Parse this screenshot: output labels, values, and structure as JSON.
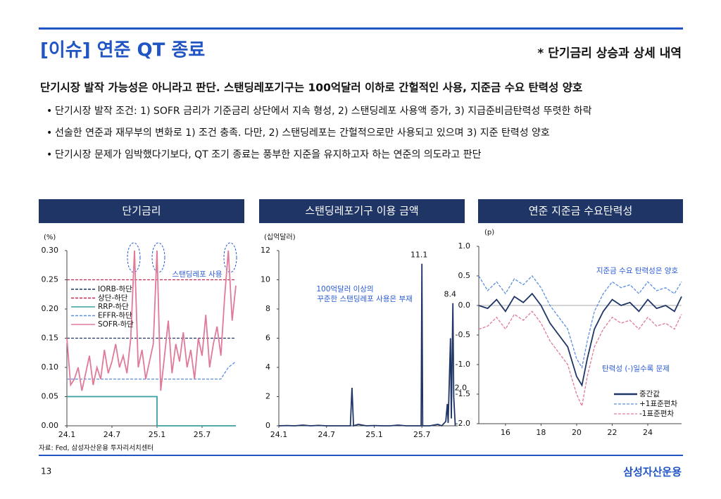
{
  "header": {
    "title": "[이슈] 연준 QT 종료",
    "subtitle": "* 단기금리 상승과 상세 내역"
  },
  "headline": "단기시장 발작 가능성은 아니라고 판단. 스탠딩레포기구는 100억달러 이하로 간헐적인 사용, 지준금 수요 탄력성 양호",
  "bullets": [
    "단기시장 발작 조건: 1) SOFR 금리가 기준금리 상단에서 지속 형성, 2) 스탠딩레포 사용액 증가, 3) 지급준비금탄력성 뚜렷한 하락",
    "선술한 연준과 재무부의 변화로 1) 조건 충족. 다만, 2) 스탠딩레포는 간헐적으로만 사용되고 있으며 3) 지준 탄력성 양호",
    "단기시장 문제가 임박했다기보다, QT 조기 종료는 풍부한 지준을 유지하고자 하는 연준의 의도라고 판단"
  ],
  "chart_data": [
    {
      "type": "line",
      "title": "단기금리",
      "ylabel": "(%)",
      "xlim": [
        0,
        22.5
      ],
      "xticks": [
        {
          "value": 0,
          "label": "24.1"
        },
        {
          "value": 6,
          "label": "24.7"
        },
        {
          "value": 12,
          "label": "25.1"
        },
        {
          "value": 18,
          "label": "25.7"
        }
      ],
      "ylim": [
        0,
        0.3
      ],
      "yticks": [
        {
          "value": 0,
          "label": "0.00"
        },
        {
          "value": 0.05,
          "label": "0.05"
        },
        {
          "value": 0.1,
          "label": "0.10"
        },
        {
          "value": 0.15,
          "label": "0.15"
        },
        {
          "value": 0.2,
          "label": "0.20"
        },
        {
          "value": 0.25,
          "label": "0.25"
        },
        {
          "value": 0.3,
          "label": "0.30"
        }
      ],
      "legend": "upper left",
      "annotations": [
        "스탠딩레포 사용"
      ],
      "series": [
        {
          "name": "IORB-하단",
          "color": "#1f3566",
          "dash": true,
          "x": [
            0,
            22.5
          ],
          "values": [
            0.15,
            0.15
          ]
        },
        {
          "name": "상단-하단",
          "color": "#c8264f",
          "dash": true,
          "x": [
            0,
            22.5
          ],
          "values": [
            0.25,
            0.25
          ]
        },
        {
          "name": "RRP-하단",
          "color": "#3aa0a0",
          "dash": false,
          "x": [
            0,
            12,
            12,
            22.5
          ],
          "values": [
            0.05,
            0.05,
            0,
            0
          ]
        },
        {
          "name": "EFFR-하단",
          "color": "#5b8fe0",
          "dash": true,
          "x": [
            0,
            20.5,
            21.5,
            22.5
          ],
          "values": [
            0.08,
            0.08,
            0.1,
            0.11
          ]
        },
        {
          "name": "SOFR-하단",
          "color": "#e07a99",
          "dash": false,
          "x": [
            0,
            0.5,
            1,
            1.5,
            2,
            2.5,
            3,
            3.5,
            4,
            4.5,
            5,
            5.5,
            6,
            6.5,
            7,
            7.5,
            8,
            8.5,
            9,
            9.5,
            10,
            10.5,
            11,
            11.5,
            12,
            12.5,
            13,
            13.5,
            14,
            14.5,
            15,
            15.5,
            16,
            16.5,
            17,
            17.5,
            18,
            18.5,
            19,
            19.5,
            20,
            20.5,
            21,
            21.5,
            22,
            22.5
          ],
          "values": [
            0.15,
            0.07,
            0.08,
            0.1,
            0.06,
            0.09,
            0.12,
            0.07,
            0.1,
            0.08,
            0.13,
            0.09,
            0.11,
            0.14,
            0.1,
            0.12,
            0.09,
            0.15,
            0.3,
            0.1,
            0.13,
            0.08,
            0.11,
            0.14,
            0.3,
            0.06,
            0.12,
            0.18,
            0.09,
            0.14,
            0.11,
            0.16,
            0.1,
            0.13,
            0.08,
            0.15,
            0.12,
            0.19,
            0.1,
            0.14,
            0.17,
            0.12,
            0.22,
            0.3,
            0.18,
            0.24
          ]
        }
      ]
    },
    {
      "type": "line",
      "title": "스탠딩레포기구 이용 금액",
      "ylabel": "(십억달러)",
      "color": "#1f3566",
      "xlim": [
        0,
        22.5
      ],
      "xticks": [
        {
          "value": 0,
          "label": "24.1"
        },
        {
          "value": 6,
          "label": "24.7"
        },
        {
          "value": 12,
          "label": "25.1"
        },
        {
          "value": 18,
          "label": "25.7"
        }
      ],
      "ylim": [
        0,
        12
      ],
      "yticks": [
        0,
        2,
        4,
        6,
        8,
        10,
        12
      ],
      "annotations": [
        "100억달러 이상의",
        "꾸준한 스탠딩레포 사용은 부재"
      ],
      "x": [
        0,
        1,
        2,
        3,
        4,
        5,
        6,
        7,
        8,
        9,
        9.2,
        9.4,
        10,
        11,
        12,
        13,
        14,
        15,
        16,
        17,
        17.9,
        18,
        18.1,
        19,
        20,
        20.5,
        21,
        21.2,
        21.3,
        21.6,
        21.7,
        21.9,
        22,
        22.2
      ],
      "values": [
        0,
        0.02,
        0,
        0.05,
        0,
        0.03,
        0,
        0,
        0,
        0,
        2.6,
        0,
        0.1,
        0,
        0.02,
        0,
        0,
        0.05,
        0,
        0,
        0,
        11.1,
        0,
        0,
        0.1,
        0,
        0.3,
        1.5,
        0.2,
        6.0,
        0.5,
        8.4,
        2.0,
        0
      ],
      "value_labels": [
        null,
        null,
        null,
        null,
        null,
        null,
        null,
        null,
        null,
        null,
        null,
        null,
        null,
        null,
        null,
        null,
        null,
        null,
        null,
        null,
        null,
        "11.1",
        null,
        null,
        null,
        null,
        null,
        null,
        null,
        null,
        null,
        "8.4",
        "2.0",
        null
      ]
    },
    {
      "type": "line",
      "title": "연준 지준금 수요탄력성",
      "ylabel": "(p)",
      "xlim": [
        14.5,
        25.9
      ],
      "xticks": [
        16,
        18,
        20,
        22,
        24
      ],
      "ylim": [
        -2,
        1
      ],
      "yticks": [
        {
          "value": 1,
          "label": "1.0"
        },
        {
          "value": 0.5,
          "label": "0.5"
        },
        {
          "value": 0,
          "label": "0.0"
        },
        {
          "value": -0.5,
          "label": "-0.5"
        },
        {
          "value": -1,
          "label": "-1.0"
        },
        {
          "value": -1.5,
          "label": "-1.5"
        },
        {
          "value": -2,
          "label": "-2.0"
        }
      ],
      "zero_line": true,
      "legend": "lower right",
      "annotations": [
        "지준금 수요 탄력성은 양호",
        "탄력성 (-)일수록 문제"
      ],
      "x": [
        14.5,
        15,
        15.5,
        16,
        16.5,
        17,
        17.5,
        18,
        18.5,
        19,
        19.5,
        20,
        20.3,
        20.6,
        21,
        21.5,
        22,
        22.5,
        23,
        23.5,
        24,
        24.5,
        25,
        25.5,
        25.9
      ],
      "series": [
        {
          "name": "중간값",
          "color": "#1f3566",
          "dash": false,
          "values": [
            0.0,
            -0.05,
            0.1,
            -0.1,
            0.15,
            0.05,
            0.2,
            0.0,
            -0.3,
            -0.5,
            -0.7,
            -1.2,
            -1.35,
            -0.9,
            -0.4,
            -0.1,
            0.1,
            0.0,
            0.05,
            -0.1,
            0.1,
            -0.05,
            0.0,
            -0.1,
            0.15
          ]
        },
        {
          "name": "+1표준편차",
          "color": "#5b8fe0",
          "dash": true,
          "values": [
            0.5,
            0.25,
            0.4,
            0.2,
            0.45,
            0.35,
            0.5,
            0.3,
            0.0,
            -0.2,
            -0.4,
            -0.9,
            -1.05,
            -0.6,
            -0.1,
            0.2,
            0.4,
            0.3,
            0.35,
            0.2,
            0.4,
            0.25,
            0.3,
            0.2,
            0.4
          ]
        },
        {
          "name": "-1표준편차",
          "color": "#e07a99",
          "dash": true,
          "values": [
            -0.4,
            -0.35,
            -0.2,
            -0.4,
            -0.15,
            -0.25,
            -0.1,
            -0.3,
            -0.6,
            -0.8,
            -1.0,
            -1.5,
            -1.7,
            -1.2,
            -0.7,
            -0.4,
            -0.2,
            -0.3,
            -0.25,
            -0.4,
            -0.2,
            -0.35,
            -0.3,
            -0.4,
            -0.15
          ]
        }
      ]
    }
  ],
  "footer": {
    "source": "자료: Fed, 삼성자산운용 투자리서치센터",
    "page": "13",
    "brand": "삼성자산운용"
  }
}
